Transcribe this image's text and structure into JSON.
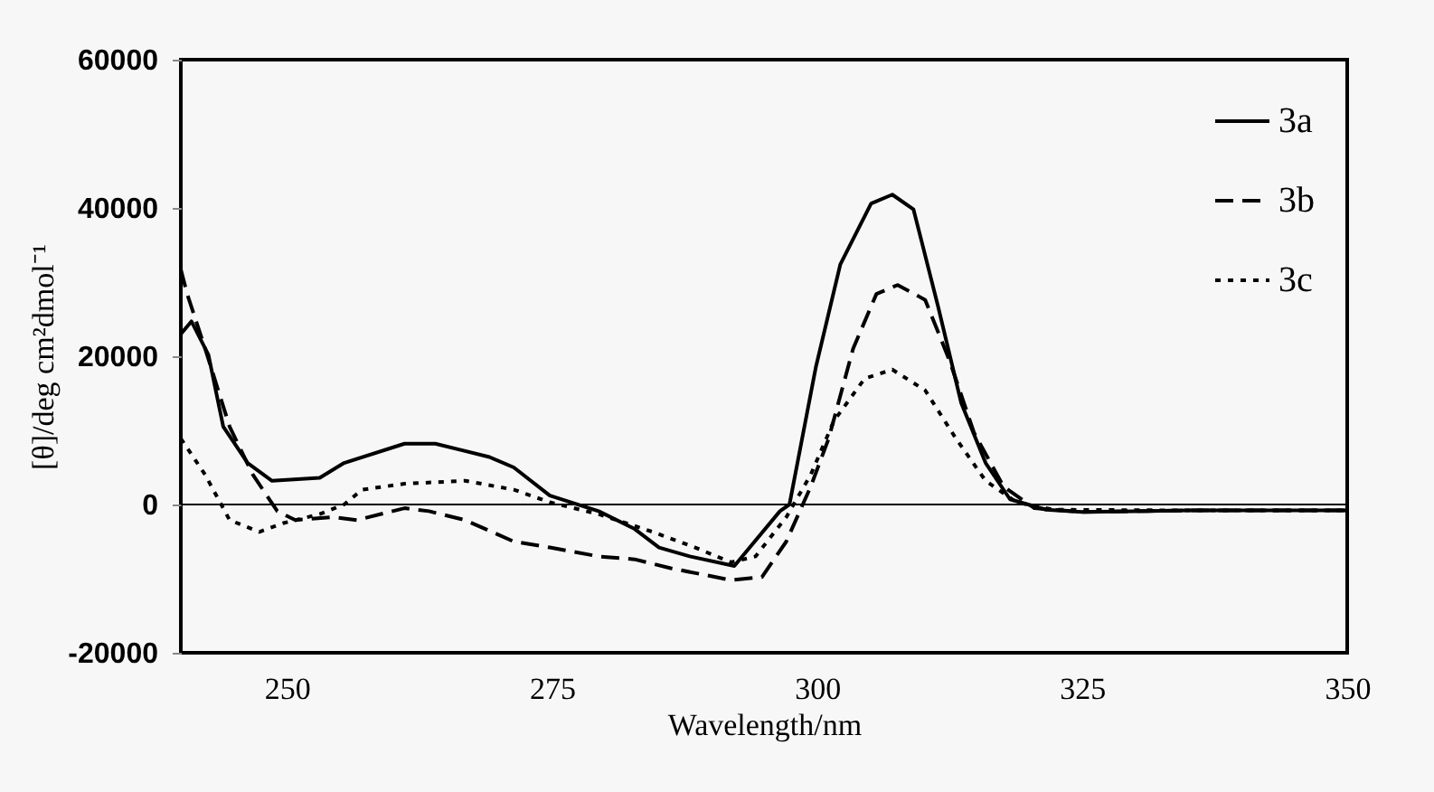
{
  "chart_data": {
    "type": "line",
    "xlabel": "Wavelength/nm",
    "ylabel": "[θ]/deg cm²dmol⁻¹",
    "xlim": [
      240,
      350
    ],
    "xticks": [
      250,
      275,
      300,
      325,
      350
    ],
    "ylim": [
      -20000,
      60000
    ],
    "yticks": [
      -20000,
      0,
      20000,
      40000,
      60000
    ],
    "grid": false,
    "legend": "top right",
    "marker": "none",
    "ref_lines": [
      {
        "axis": "y",
        "value": 0,
        "color": "#000000"
      }
    ],
    "series": [
      {
        "name": "3a",
        "color": "#000000",
        "line_style": "solid",
        "x": [
          240,
          241,
          242.6,
          244,
          246.3,
          248.6,
          253.1,
          255.4,
          261.1,
          264,
          269.1,
          271.4,
          274.8,
          279.4,
          282.8,
          285.1,
          288,
          292.2,
          296.5,
          297.4,
          299.9,
          302.2,
          305.1,
          307.1,
          309.1,
          311.4,
          313.6,
          315.9,
          318.2,
          321.6,
          325,
          335,
          350
        ],
        "values": [
          23000,
          24700,
          20200,
          10500,
          5600,
          3200,
          3600,
          5600,
          8200,
          8200,
          6400,
          5000,
          1200,
          -900,
          -3300,
          -5800,
          -7000,
          -8300,
          -900,
          0,
          18600,
          32400,
          40600,
          41800,
          39800,
          26800,
          13700,
          5600,
          700,
          -700,
          -1000,
          -800,
          -800
        ]
      },
      {
        "name": "3b",
        "color": "#000000",
        "line_style": "dashed",
        "x": [
          240,
          240.6,
          242.3,
          244.6,
          246.8,
          249.1,
          250.8,
          254.3,
          256.6,
          261.1,
          263.4,
          266.8,
          271.4,
          274.8,
          279.4,
          282.8,
          286.2,
          291.9,
          294.8,
          297.1,
          299.4,
          301.1,
          303.4,
          305.6,
          307.6,
          310.2,
          312.5,
          314.8,
          317.6,
          320.5,
          325,
          335,
          350
        ],
        "values": [
          31700,
          28400,
          21000,
          10500,
          4000,
          -900,
          -2100,
          -1700,
          -2100,
          -500,
          -900,
          -2100,
          -5000,
          -5800,
          -7000,
          -7400,
          -8600,
          -10200,
          -9800,
          -5000,
          2400,
          8900,
          21000,
          28400,
          29600,
          27600,
          19400,
          9700,
          2400,
          -500,
          -1000,
          -800,
          -800
        ]
      },
      {
        "name": "3c",
        "color": "#000000",
        "line_style": "dotted",
        "x": [
          240,
          242.3,
          244.6,
          247.4,
          249.7,
          253.1,
          255.4,
          257.1,
          261.1,
          266.8,
          271.4,
          274.8,
          279.4,
          284.5,
          288.5,
          291.9,
          294.2,
          297.1,
          299.4,
          301.6,
          304.5,
          307.1,
          310.2,
          313.1,
          315.9,
          318.8,
          322.3,
          335,
          350
        ],
        "values": [
          8900,
          4000,
          -2100,
          -3700,
          -2500,
          -1300,
          0,
          2000,
          2800,
          3200,
          2000,
          300,
          -1300,
          -3700,
          -5800,
          -7800,
          -7000,
          -1700,
          4000,
          11300,
          17000,
          18200,
          15400,
          8900,
          3200,
          300,
          -700,
          -800,
          -800
        ]
      }
    ]
  }
}
